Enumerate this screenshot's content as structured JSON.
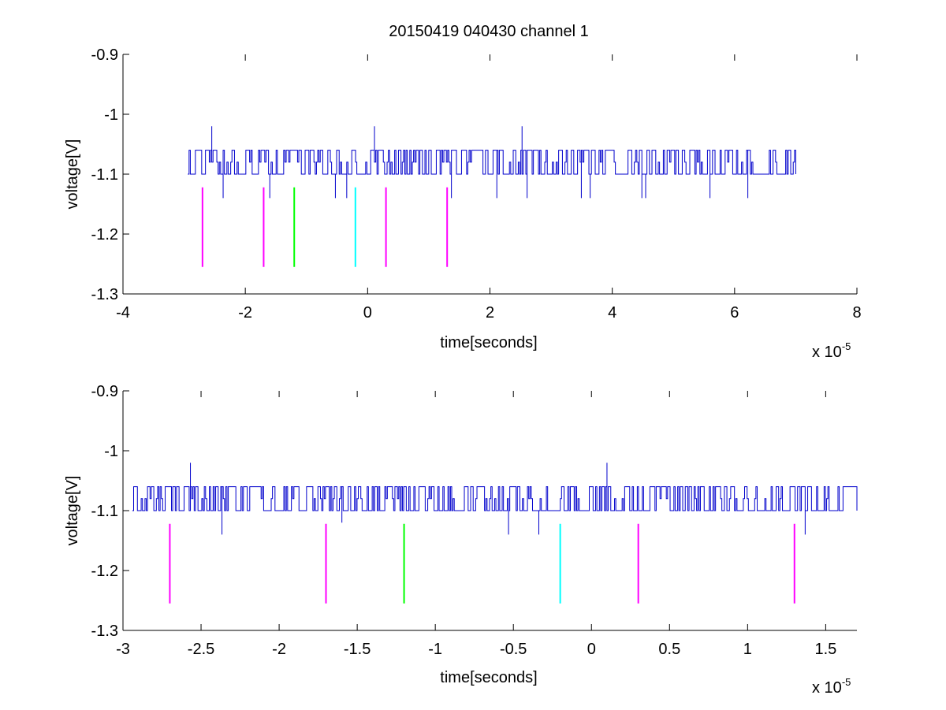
{
  "figure": {
    "title": "20150419 040430 channel 1"
  },
  "chart_data": [
    {
      "type": "line",
      "title": "20150419 040430 channel 1",
      "xlabel": "time[seconds]",
      "ylabel": "voltage[V]",
      "x_exponent_label": "x 10",
      "x_exponent": "-5",
      "xlim": [
        -4,
        8
      ],
      "ylim": [
        -1.3,
        -0.9
      ],
      "xticks": [
        -4,
        -2,
        0,
        2,
        4,
        6,
        8
      ],
      "xtick_labels": [
        "-4",
        "-2",
        "0",
        "2",
        "4",
        "6",
        "8"
      ],
      "yticks": [
        -1.3,
        -1.2,
        -1.1,
        -1.0,
        -0.9
      ],
      "ytick_labels": [
        "-1.3",
        "-1.2",
        "-1.1",
        "-1",
        "-0.9"
      ],
      "grid": false,
      "series": [
        {
          "color": "#0000cc",
          "x_range": [
            -2.94,
            7.0
          ],
          "levels": [
            -1.06,
            -1.08,
            -1.1
          ],
          "spikes": [
            {
              "x": -2.55,
              "y": -1.02
            },
            {
              "x": 0.12,
              "y": -1.02
            },
            {
              "x": 2.52,
              "y": -1.02
            },
            {
              "x": -2.36,
              "y": -1.14
            },
            {
              "x": -1.6,
              "y": -1.14
            },
            {
              "x": -0.53,
              "y": -1.14
            },
            {
              "x": -0.34,
              "y": -1.14
            },
            {
              "x": 1.37,
              "y": -1.14
            },
            {
              "x": 2.12,
              "y": -1.14
            },
            {
              "x": 2.6,
              "y": -1.14
            },
            {
              "x": 3.5,
              "y": -1.14
            },
            {
              "x": 3.64,
              "y": -1.14
            },
            {
              "x": 4.48,
              "y": -1.14
            },
            {
              "x": 4.55,
              "y": -1.14
            },
            {
              "x": 5.6,
              "y": -1.14
            },
            {
              "x": 6.22,
              "y": -1.14
            }
          ]
        }
      ],
      "markers": [
        {
          "x": -2.7,
          "color": "#ff00ff"
        },
        {
          "x": -1.7,
          "color": "#ff00ff"
        },
        {
          "x": -1.2,
          "color": "#00ff00"
        },
        {
          "x": -0.2,
          "color": "#00ffff"
        },
        {
          "x": 0.3,
          "color": "#ff00ff"
        },
        {
          "x": 1.3,
          "color": "#ff00ff"
        }
      ],
      "marker_y_range": [
        -1.255,
        -1.122
      ]
    },
    {
      "type": "line",
      "title": "",
      "xlabel": "time[seconds]",
      "ylabel": "voltage[V]",
      "x_exponent_label": "x 10",
      "x_exponent": "-5",
      "xlim": [
        -3.0,
        1.7
      ],
      "ylim": [
        -1.3,
        -0.9
      ],
      "xticks": [
        -3,
        -2.5,
        -2,
        -1.5,
        -1,
        -0.5,
        0,
        0.5,
        1,
        1.5
      ],
      "xtick_labels": [
        "-3",
        "-2.5",
        "-2",
        "-1.5",
        "-1",
        "-0.5",
        "0",
        "0.5",
        "1",
        "1.5"
      ],
      "yticks": [
        -1.3,
        -1.2,
        -1.1,
        -1.0,
        -0.9
      ],
      "ytick_labels": [
        "-1.3",
        "-1.2",
        "-1.1",
        "-1",
        "-0.9"
      ],
      "grid": false,
      "series": [
        {
          "color": "#0000cc",
          "x_range": [
            -2.94,
            1.7
          ],
          "levels": [
            -1.06,
            -1.08,
            -1.1
          ],
          "spikes": [
            {
              "x": -2.57,
              "y": -1.02
            },
            {
              "x": 0.1,
              "y": -1.02
            },
            {
              "x": -2.37,
              "y": -1.14
            },
            {
              "x": -1.6,
              "y": -1.12
            },
            {
              "x": -0.53,
              "y": -1.14
            },
            {
              "x": -0.34,
              "y": -1.14
            },
            {
              "x": 1.37,
              "y": -1.14
            }
          ]
        }
      ],
      "markers": [
        {
          "x": -2.7,
          "color": "#ff00ff"
        },
        {
          "x": -1.7,
          "color": "#ff00ff"
        },
        {
          "x": -1.2,
          "color": "#00ff00"
        },
        {
          "x": -0.2,
          "color": "#00ffff"
        },
        {
          "x": 0.3,
          "color": "#ff00ff"
        },
        {
          "x": 1.3,
          "color": "#ff00ff"
        }
      ],
      "marker_y_range": [
        -1.255,
        -1.122
      ]
    }
  ]
}
